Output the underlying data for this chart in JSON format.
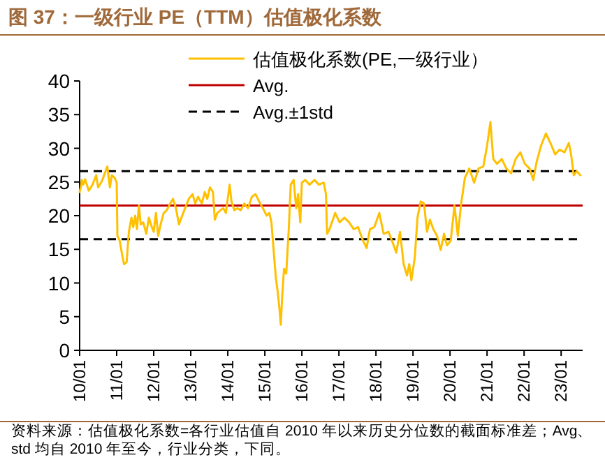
{
  "chart_data": {
    "type": "line",
    "title": "图 37：一级行业 PE（TTM）估值极化系数",
    "annotations": [
      "资料来源：估值极化系数=各行业估值自 2010 年以来历史分位数的截面标准差；Avg、std 均自 2010 年至今，行业分类，下同。"
    ],
    "x": [
      "2010-01-01",
      "2010-01-12",
      "2010-01-23",
      "2010-02-06",
      "2010-02-24",
      "2010-04-01",
      "2010-05-08",
      "2010-06-13",
      "2010-07-02",
      "2010-08-08",
      "2010-10-01",
      "2010-10-26",
      "2010-11-14",
      "2010-12-13",
      "2011-01-01",
      "2011-01-08",
      "2011-01-30",
      "2011-02-24",
      "2011-03-14",
      "2011-04-09",
      "2011-05-01",
      "2011-05-27",
      "2011-06-13",
      "2011-07-02",
      "2011-07-20",
      "2011-08-08",
      "2011-08-26",
      "2011-09-20",
      "2011-10-20",
      "2011-11-14",
      "2011-12-13",
      "2012-01-01",
      "2012-01-23",
      "2012-02-14",
      "2012-03-14",
      "2012-04-09",
      "2012-05-08",
      "2012-06-13",
      "2012-07-09",
      "2012-08-08",
      "2012-09-06",
      "2012-10-01",
      "2012-11-06",
      "2012-12-13",
      "2013-01-19",
      "2013-02-14",
      "2013-03-14",
      "2013-04-20",
      "2013-05-19",
      "2013-06-13",
      "2013-07-09",
      "2013-08-08",
      "2013-08-26",
      "2013-09-20",
      "2013-10-20",
      "2013-11-17",
      "2013-12-13",
      "2014-01-19",
      "2014-02-06",
      "2014-03-07",
      "2014-04-05",
      "2014-05-08",
      "2014-06-13",
      "2014-07-20",
      "2014-08-26",
      "2014-10-01",
      "2014-11-06",
      "2014-12-13",
      "2015-01-19",
      "2015-02-14",
      "2015-03-07",
      "2015-04-01",
      "2015-04-20",
      "2015-05-08",
      "2015-05-27",
      "2015-06-07",
      "2015-06-21",
      "2015-07-09",
      "2015-07-31",
      "2015-08-26",
      "2015-09-13",
      "2015-10-12",
      "2015-11-06",
      "2015-11-25",
      "2015-12-16",
      "2016-01-01",
      "2016-02-03",
      "2016-03-18",
      "2016-05-05",
      "2016-06-17",
      "2016-08-04",
      "2016-08-26",
      "2016-09-06",
      "2016-10-01",
      "2016-11-25",
      "2017-01-08",
      "2017-02-24",
      "2017-04-12",
      "2017-05-27",
      "2017-07-09",
      "2017-08-26",
      "2017-10-01",
      "2017-11-03",
      "2017-12-16",
      "2018-02-03",
      "2018-03-18",
      "2018-05-05",
      "2018-06-17",
      "2018-07-20",
      "2018-08-26",
      "2018-10-01",
      "2018-11-03",
      "2018-11-25",
      "2018-12-16",
      "2019-01-19",
      "2019-02-14",
      "2019-03-18",
      "2019-04-20",
      "2019-05-19",
      "2019-06-17",
      "2019-07-20",
      "2019-08-26",
      "2019-10-01",
      "2019-11-03",
      "2019-12-02",
      "2020-01-08",
      "2020-02-14",
      "2020-03-18",
      "2020-04-20",
      "2020-05-27",
      "2020-07-09",
      "2020-08-26",
      "2020-10-09",
      "2020-11-25",
      "2021-01-01",
      "2021-02-03",
      "2021-03-03",
      "2021-04-09",
      "2021-05-27",
      "2021-07-09",
      "2021-08-26",
      "2021-10-09",
      "2021-11-25",
      "2022-01-08",
      "2022-02-24",
      "2022-04-01",
      "2022-05-05",
      "2022-06-17",
      "2022-08-04",
      "2022-09-17",
      "2022-11-03",
      "2022-12-16",
      "2023-02-03",
      "2023-03-18",
      "2023-04-09",
      "2023-05-05",
      "2023-06-03",
      "2023-07-09"
    ],
    "series": [
      {
        "name": "估值极化系数(PE,一级行业）",
        "color": "#ffc000",
        "values": [
          23.5,
          24.2,
          25.3,
          24.6,
          25.4,
          23.7,
          24.6,
          26,
          24.2,
          25.1,
          27.3,
          24.2,
          26,
          25.6,
          24.9,
          17,
          16.3,
          14.2,
          12.8,
          13.1,
          17.6,
          19.7,
          18.3,
          20,
          18,
          21.5,
          18.7,
          19,
          17.3,
          19.7,
          18.3,
          17.6,
          20.4,
          17,
          19,
          20.4,
          20.8,
          21.8,
          22.5,
          21.1,
          18.7,
          19.7,
          21.1,
          22.5,
          23.2,
          21.8,
          22.8,
          21.8,
          23.5,
          22.5,
          24.2,
          23.5,
          19.4,
          20.4,
          20.8,
          21.1,
          20.4,
          24.6,
          22.1,
          20.8,
          21.1,
          20.8,
          21.8,
          21.1,
          22.8,
          23.2,
          22.1,
          21.1,
          20,
          20.4,
          19,
          14.2,
          10.7,
          8.7,
          5.9,
          3.8,
          8,
          12.1,
          11.4,
          18.3,
          24.6,
          25.3,
          21.1,
          23.2,
          19,
          24.9,
          25.3,
          24.6,
          25.3,
          24.6,
          24.9,
          23.2,
          17.3,
          18,
          20.4,
          19,
          19.7,
          19,
          18,
          18.3,
          16.3,
          15.2,
          18,
          18.3,
          20.4,
          17.3,
          17.6,
          15.9,
          14.5,
          17.6,
          12.8,
          11.1,
          12.8,
          10.4,
          13.8,
          19.7,
          22.1,
          21.8,
          17.6,
          19.4,
          18,
          17,
          14.9,
          17.3,
          15.6,
          16.3,
          21.5,
          17,
          21.8,
          25.6,
          27,
          24.9,
          27,
          27.3,
          30.4,
          33.9,
          28.4,
          27.7,
          28.4,
          27,
          26.3,
          28.4,
          29.4,
          27.7,
          27,
          25.3,
          28,
          30.4,
          32.2,
          30.8,
          29.1,
          29.8,
          29.4,
          30.8,
          29.1,
          26,
          26.6,
          26
        ]
      }
    ],
    "ref_lines": [
      {
        "axis": "y",
        "value": 21.5,
        "label": "Avg.",
        "color": "#c00000",
        "line_style": "solid"
      },
      {
        "axis": "y",
        "value": 26.6,
        "label": "Avg.±1std",
        "color": "#000000",
        "line_style": "dashed"
      },
      {
        "axis": "y",
        "value": 16.5,
        "color": "#000000",
        "line_style": "dashed"
      }
    ],
    "xlim": [
      "2010-01-01",
      "2023-08-01"
    ],
    "xticks": [
      {
        "value": "2010-01-01",
        "label": "10/01"
      },
      {
        "value": "2011-01-01",
        "label": "11/01"
      },
      {
        "value": "2012-01-01",
        "label": "12/01"
      },
      {
        "value": "2013-01-01",
        "label": "13/01"
      },
      {
        "value": "2014-01-01",
        "label": "14/01"
      },
      {
        "value": "2015-01-01",
        "label": "15/01"
      },
      {
        "value": "2016-01-01",
        "label": "16/01"
      },
      {
        "value": "2017-01-01",
        "label": "17/01"
      },
      {
        "value": "2018-01-01",
        "label": "18/01"
      },
      {
        "value": "2019-01-01",
        "label": "19/01"
      },
      {
        "value": "2020-01-01",
        "label": "20/01"
      },
      {
        "value": "2021-01-01",
        "label": "21/01"
      },
      {
        "value": "2022-01-01",
        "label": "22/01"
      },
      {
        "value": "2023-01-01",
        "label": "23/01"
      }
    ],
    "ylim": [
      0,
      40
    ],
    "yticks": [
      0,
      5,
      10,
      15,
      20,
      25,
      30,
      35,
      40
    ],
    "legend": "top",
    "grid": false,
    "marker": "none",
    "line_style": "solid"
  }
}
